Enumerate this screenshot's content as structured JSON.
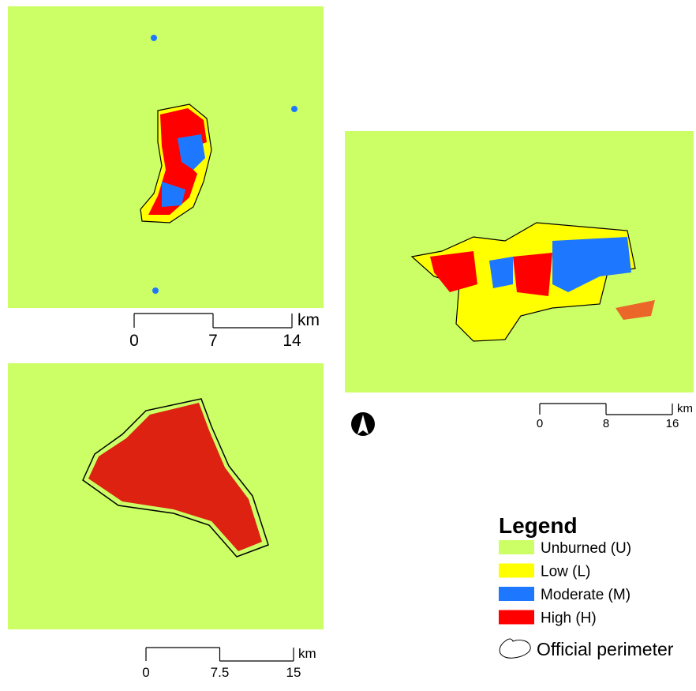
{
  "maps": [
    {
      "scale": {
        "ticks": [
          0,
          7,
          14
        ],
        "unit": "km"
      }
    },
    {
      "scale": {
        "ticks": [
          0,
          8,
          16
        ],
        "unit": "km"
      }
    },
    {
      "scale": {
        "ticks": [
          0,
          7.5,
          15
        ],
        "unit": "km"
      }
    }
  ],
  "legend": {
    "title": "Legend",
    "items": [
      {
        "label": "Unburned (U)",
        "color": "#ccff66"
      },
      {
        "label": "Low (L)",
        "color": "#ffff00"
      },
      {
        "label": "Moderate (M)",
        "color": "#1e78ff"
      },
      {
        "label": "High (H)",
        "color": "#ff0000"
      }
    ],
    "perimeter": "Official perimeter"
  }
}
